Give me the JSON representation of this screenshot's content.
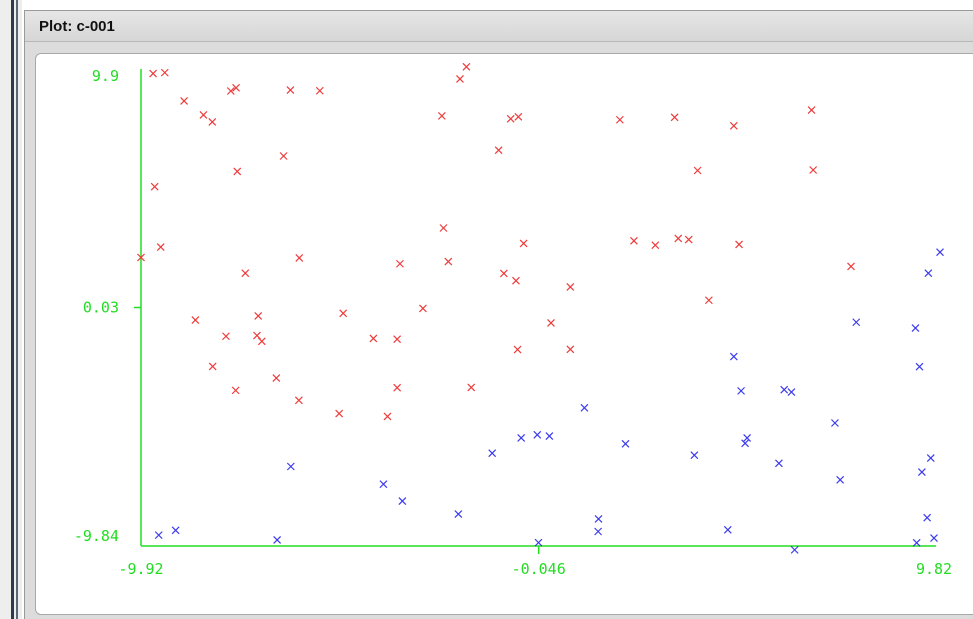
{
  "window": {
    "title": "Plot: c-001"
  },
  "colors": {
    "axis": "#22dd22",
    "series_red": "#ee3b3b",
    "series_blue": "#3b3bee"
  },
  "chart_data": {
    "type": "scatter",
    "xlim": [
      -9.92,
      9.82
    ],
    "ylim": [
      -9.84,
      9.9
    ],
    "x_ticks": [
      "-9.92",
      "-0.046",
      "9.82"
    ],
    "y_ticks": [
      "9.9",
      "0.03",
      "-9.84"
    ],
    "grid": false,
    "series": [
      {
        "color": "#ee3b3b",
        "points": [
          [
            -9.62,
            9.71
          ],
          [
            -9.33,
            9.75
          ],
          [
            -8.85,
            8.58
          ],
          [
            -8.37,
            8.0
          ],
          [
            -8.15,
            7.71
          ],
          [
            -7.69,
            8.99
          ],
          [
            -7.56,
            9.12
          ],
          [
            -6.21,
            9.03
          ],
          [
            -5.48,
            9.0
          ],
          [
            -2.45,
            7.96
          ],
          [
            -2.0,
            9.49
          ],
          [
            -1.84,
            9.99
          ],
          [
            -0.74,
            7.84
          ],
          [
            -0.55,
            7.92
          ],
          [
            1.97,
            7.8
          ],
          [
            3.33,
            7.9
          ],
          [
            4.8,
            7.55
          ],
          [
            6.73,
            8.2
          ],
          [
            -9.58,
            5.03
          ],
          [
            -7.53,
            5.66
          ],
          [
            -6.38,
            6.3
          ],
          [
            -1.04,
            6.54
          ],
          [
            3.9,
            5.7
          ],
          [
            6.77,
            5.72
          ],
          [
            -9.92,
            2.1
          ],
          [
            -9.43,
            2.53
          ],
          [
            -7.33,
            1.45
          ],
          [
            -5.99,
            2.08
          ],
          [
            -3.49,
            1.84
          ],
          [
            -2.41,
            3.32
          ],
          [
            -2.29,
            1.93
          ],
          [
            -0.91,
            1.44
          ],
          [
            -0.61,
            1.14
          ],
          [
            -0.42,
            2.68
          ],
          [
            0.74,
            0.88
          ],
          [
            2.32,
            2.79
          ],
          [
            2.85,
            2.61
          ],
          [
            3.42,
            2.89
          ],
          [
            3.68,
            2.84
          ],
          [
            4.93,
            2.64
          ],
          [
            7.71,
            1.73
          ],
          [
            -8.57,
            -0.49
          ],
          [
            -7.81,
            -1.16
          ],
          [
            -7.01,
            -0.32
          ],
          [
            -7.04,
            -1.13
          ],
          [
            -6.92,
            -1.37
          ],
          [
            -4.9,
            -0.21
          ],
          [
            -4.15,
            -1.25
          ],
          [
            -3.56,
            -1.28
          ],
          [
            -2.92,
            -0.01
          ],
          [
            0.26,
            -0.61
          ],
          [
            0.74,
            -1.7
          ],
          [
            -0.57,
            -1.71
          ],
          [
            4.18,
            0.33
          ],
          [
            -8.14,
            -2.41
          ],
          [
            -7.57,
            -3.4
          ],
          [
            -6.56,
            -2.89
          ],
          [
            -6.0,
            -3.81
          ],
          [
            -5.0,
            -4.36
          ],
          [
            -3.56,
            -3.29
          ],
          [
            -3.8,
            -4.48
          ],
          [
            -1.72,
            -3.28
          ]
        ]
      },
      {
        "color": "#3b3bee",
        "points": [
          [
            -9.48,
            -9.39
          ],
          [
            -9.06,
            -9.19
          ],
          [
            -6.54,
            -9.59
          ],
          [
            -6.2,
            -6.55
          ],
          [
            -3.9,
            -7.28
          ],
          [
            -3.43,
            -7.98
          ],
          [
            -2.04,
            -8.52
          ],
          [
            -1.2,
            -6.0
          ],
          [
            -0.48,
            -5.37
          ],
          [
            -0.08,
            -5.24
          ],
          [
            0.22,
            -5.29
          ],
          [
            1.09,
            -4.12
          ],
          [
            1.44,
            -8.72
          ],
          [
            1.43,
            -9.24
          ],
          [
            2.11,
            -5.61
          ],
          [
            3.82,
            -6.08
          ],
          [
            4.65,
            -9.17
          ],
          [
            4.8,
            -2.0
          ],
          [
            4.98,
            -3.42
          ],
          [
            5.08,
            -5.59
          ],
          [
            5.13,
            -5.37
          ],
          [
            5.92,
            -6.42
          ],
          [
            6.05,
            -3.37
          ],
          [
            6.23,
            -3.47
          ],
          [
            6.31,
            -10.0
          ],
          [
            7.31,
            -4.75
          ],
          [
            7.44,
            -7.1
          ],
          [
            7.84,
            -0.58
          ],
          [
            9.31,
            -0.82
          ],
          [
            9.41,
            -2.42
          ],
          [
            9.47,
            -6.78
          ],
          [
            9.69,
            -6.2
          ],
          [
            9.6,
            -8.67
          ],
          [
            9.34,
            -9.71
          ],
          [
            9.77,
            -9.51
          ],
          [
            -0.05,
            -9.7
          ],
          [
            9.63,
            1.45
          ],
          [
            9.92,
            2.32
          ]
        ]
      }
    ]
  }
}
